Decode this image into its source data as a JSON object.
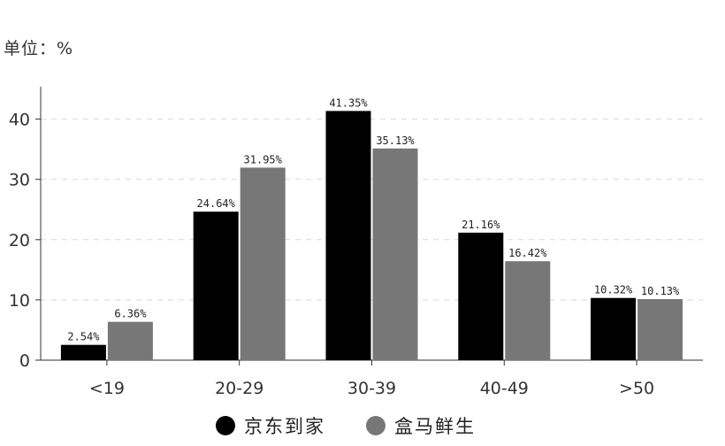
{
  "unit_label": "单位：%",
  "colors": {
    "series_0": "#000000",
    "series_1": "#777777"
  },
  "chart_data": {
    "type": "bar",
    "categories": [
      "<19",
      "20-29",
      "30-39",
      "40-49",
      ">50"
    ],
    "series": [
      {
        "name": "京东到家",
        "values": [
          2.54,
          24.64,
          41.35,
          21.16,
          10.32
        ],
        "labels": [
          "2.54%",
          "24.64%",
          "41.35%",
          "21.16%",
          "10.32%"
        ]
      },
      {
        "name": "盒马鲜生",
        "values": [
          6.36,
          31.95,
          35.13,
          16.42,
          10.13
        ],
        "labels": [
          "6.36%",
          "31.95%",
          "35.13%",
          "16.42%",
          "10.13%"
        ]
      }
    ],
    "yticks": [
      "0",
      "10",
      "20",
      "30",
      "40"
    ],
    "ylim": [
      0,
      45
    ],
    "grid": true,
    "legend_position": "bottom"
  }
}
